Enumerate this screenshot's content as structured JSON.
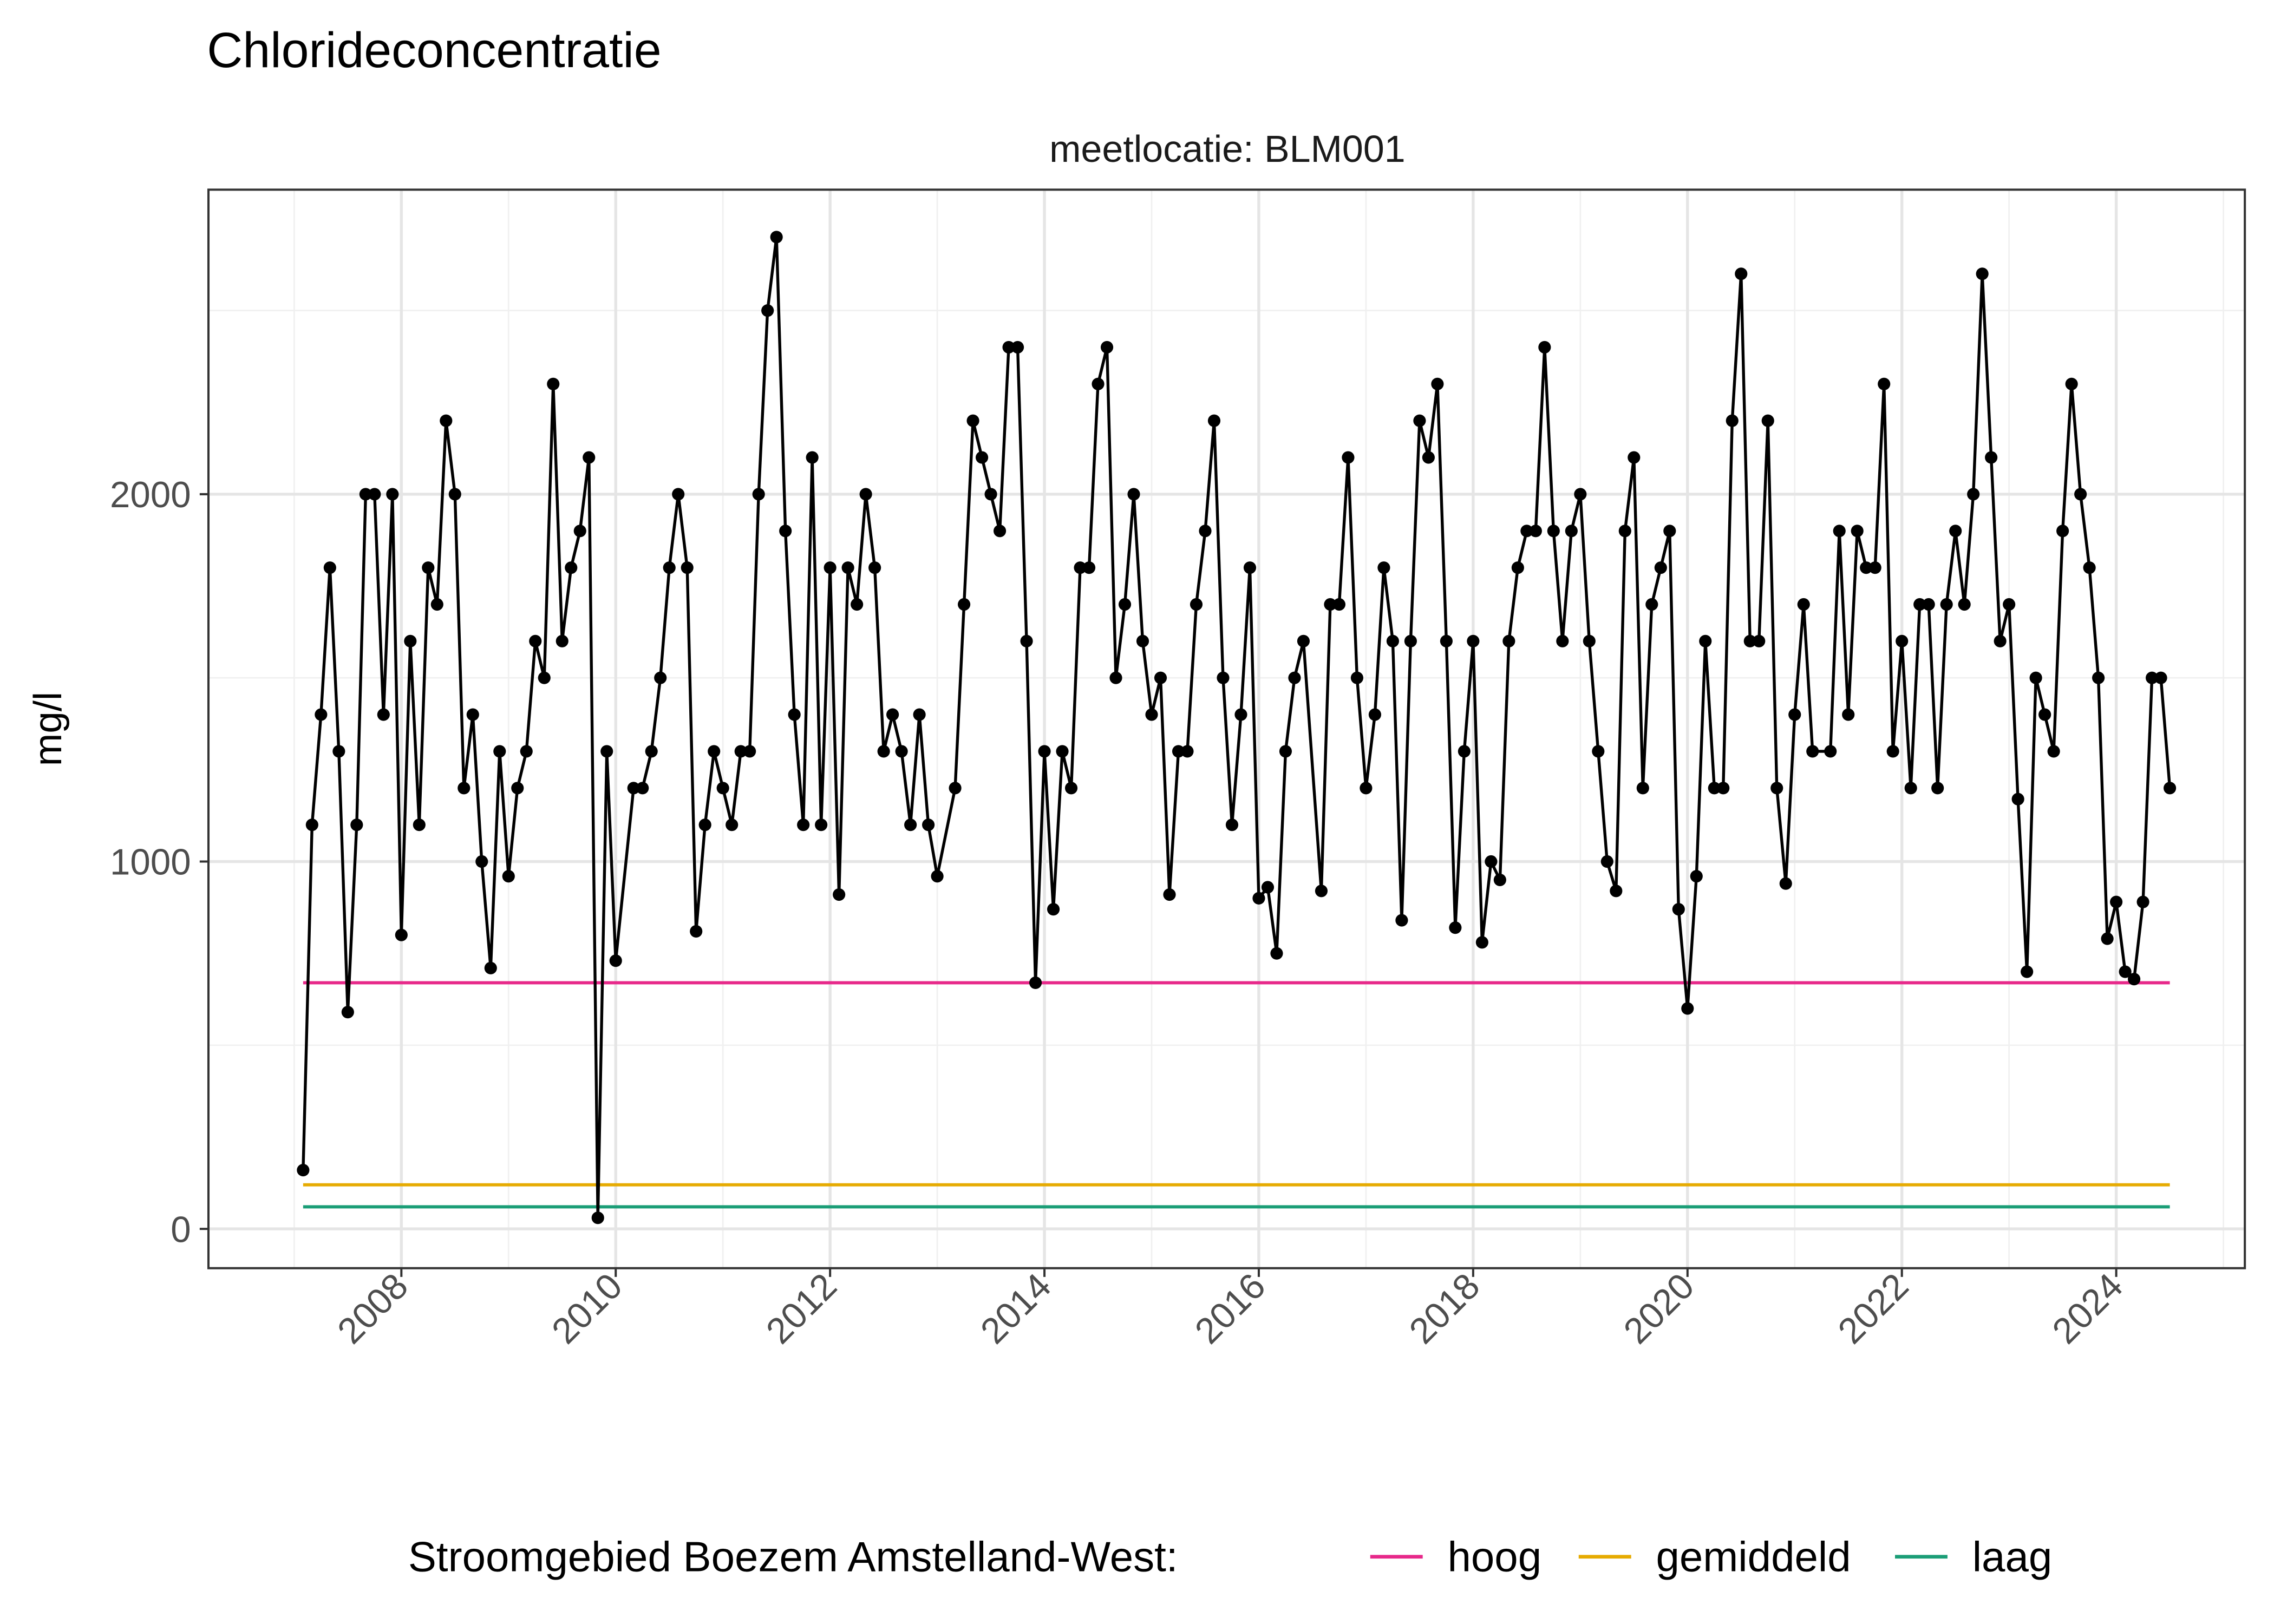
{
  "chart_data": {
    "type": "line",
    "title": "Chlorideconcentratie",
    "facet_label": "meetlocatie: BLM001",
    "xlabel": "",
    "ylabel": "mg/l",
    "xlim": [
      2006.2,
      2025.2
    ],
    "ylim": [
      -107,
      2829
    ],
    "x_ticks": [
      "2008",
      "2010",
      "2012",
      "2014",
      "2016",
      "2018",
      "2020",
      "2022",
      "2024"
    ],
    "y_ticks": [
      "0",
      "1000",
      "2000"
    ],
    "grid": true,
    "legend": {
      "position": "bottom",
      "title": "Stroomgebied Boezem Amstelland-West:",
      "entries": [
        {
          "label": "hoog",
          "color": "#E7298A"
        },
        {
          "label": "gemiddeld",
          "color": "#E6AB02"
        },
        {
          "label": "laag",
          "color": "#1B9E77"
        }
      ]
    },
    "reference_lines": [
      {
        "name": "hoog",
        "value": 670,
        "color": "#E7298A",
        "from": "2007-02",
        "to": "2024-07"
      },
      {
        "name": "gemiddeld",
        "value": 120,
        "color": "#E6AB02",
        "from": "2007-02",
        "to": "2024-07"
      },
      {
        "name": "laag",
        "value": 60,
        "color": "#1B9E77",
        "from": "2007-02",
        "to": "2024-07"
      }
    ],
    "series_color": "#000000",
    "points": [
      [
        "2007-02",
        160
      ],
      [
        "2007-03",
        1100
      ],
      [
        "2007-04",
        1400
      ],
      [
        "2007-05",
        1800
      ],
      [
        "2007-06",
        1300
      ],
      [
        "2007-07",
        590
      ],
      [
        "2007-08",
        1100
      ],
      [
        "2007-09",
        2000
      ],
      [
        "2007-10",
        2000
      ],
      [
        "2007-11",
        1400
      ],
      [
        "2007-12",
        2000
      ],
      [
        "2008-01",
        800
      ],
      [
        "2008-02",
        1600
      ],
      [
        "2008-03",
        1100
      ],
      [
        "2008-04",
        1800
      ],
      [
        "2008-05",
        1700
      ],
      [
        "2008-06",
        2200
      ],
      [
        "2008-07",
        2000
      ],
      [
        "2008-08",
        1200
      ],
      [
        "2008-09",
        1400
      ],
      [
        "2008-10",
        1000
      ],
      [
        "2008-11",
        710
      ],
      [
        "2008-12",
        1300
      ],
      [
        "2009-01",
        960
      ],
      [
        "2009-02",
        1200
      ],
      [
        "2009-03",
        1300
      ],
      [
        "2009-04",
        1600
      ],
      [
        "2009-05",
        1500
      ],
      [
        "2009-06",
        2300
      ],
      [
        "2009-07",
        1600
      ],
      [
        "2009-08",
        1800
      ],
      [
        "2009-09",
        1900
      ],
      [
        "2009-10",
        2100
      ],
      [
        "2009-11",
        30
      ],
      [
        "2009-12",
        1300
      ],
      [
        "2010-01",
        730
      ],
      [
        "2010-03",
        1200
      ],
      [
        "2010-04",
        1200
      ],
      [
        "2010-05",
        1300
      ],
      [
        "2010-06",
        1500
      ],
      [
        "2010-07",
        1800
      ],
      [
        "2010-08",
        2000
      ],
      [
        "2010-09",
        1800
      ],
      [
        "2010-10",
        810
      ],
      [
        "2010-11",
        1100
      ],
      [
        "2010-12",
        1300
      ],
      [
        "2011-01",
        1200
      ],
      [
        "2011-02",
        1100
      ],
      [
        "2011-03",
        1300
      ],
      [
        "2011-04",
        1300
      ],
      [
        "2011-05",
        2000
      ],
      [
        "2011-06",
        2500
      ],
      [
        "2011-07",
        2700
      ],
      [
        "2011-08",
        1900
      ],
      [
        "2011-09",
        1400
      ],
      [
        "2011-10",
        1100
      ],
      [
        "2011-11",
        2100
      ],
      [
        "2011-12",
        1100
      ],
      [
        "2012-01",
        1800
      ],
      [
        "2012-02",
        910
      ],
      [
        "2012-03",
        1800
      ],
      [
        "2012-04",
        1700
      ],
      [
        "2012-05",
        2000
      ],
      [
        "2012-06",
        1800
      ],
      [
        "2012-07",
        1300
      ],
      [
        "2012-08",
        1400
      ],
      [
        "2012-09",
        1300
      ],
      [
        "2012-10",
        1100
      ],
      [
        "2012-11",
        1400
      ],
      [
        "2012-12",
        1100
      ],
      [
        "2013-01",
        960
      ],
      [
        "2013-03",
        1200
      ],
      [
        "2013-04",
        1700
      ],
      [
        "2013-05",
        2200
      ],
      [
        "2013-06",
        2100
      ],
      [
        "2013-07",
        2000
      ],
      [
        "2013-08",
        1900
      ],
      [
        "2013-09",
        2400
      ],
      [
        "2013-10",
        2400
      ],
      [
        "2013-11",
        1600
      ],
      [
        "2013-12",
        670
      ],
      [
        "2014-01",
        1300
      ],
      [
        "2014-02",
        870
      ],
      [
        "2014-03",
        1300
      ],
      [
        "2014-04",
        1200
      ],
      [
        "2014-05",
        1800
      ],
      [
        "2014-06",
        1800
      ],
      [
        "2014-07",
        2300
      ],
      [
        "2014-08",
        2400
      ],
      [
        "2014-09",
        1500
      ],
      [
        "2014-10",
        1700
      ],
      [
        "2014-11",
        2000
      ],
      [
        "2014-12",
        1600
      ],
      [
        "2015-01",
        1400
      ],
      [
        "2015-02",
        1500
      ],
      [
        "2015-03",
        910
      ],
      [
        "2015-04",
        1300
      ],
      [
        "2015-05",
        1300
      ],
      [
        "2015-06",
        1700
      ],
      [
        "2015-07",
        1900
      ],
      [
        "2015-08",
        2200
      ],
      [
        "2015-09",
        1500
      ],
      [
        "2015-10",
        1100
      ],
      [
        "2015-11",
        1400
      ],
      [
        "2015-12",
        1800
      ],
      [
        "2016-01",
        900
      ],
      [
        "2016-02",
        930
      ],
      [
        "2016-03",
        750
      ],
      [
        "2016-04",
        1300
      ],
      [
        "2016-05",
        1500
      ],
      [
        "2016-06",
        1600
      ],
      [
        "2016-08",
        920
      ],
      [
        "2016-09",
        1700
      ],
      [
        "2016-10",
        1700
      ],
      [
        "2016-11",
        2100
      ],
      [
        "2016-12",
        1500
      ],
      [
        "2017-01",
        1200
      ],
      [
        "2017-02",
        1400
      ],
      [
        "2017-03",
        1800
      ],
      [
        "2017-04",
        1600
      ],
      [
        "2017-05",
        840
      ],
      [
        "2017-06",
        1600
      ],
      [
        "2017-07",
        2200
      ],
      [
        "2017-08",
        2100
      ],
      [
        "2017-09",
        2300
      ],
      [
        "2017-10",
        1600
      ],
      [
        "2017-11",
        820
      ],
      [
        "2017-12",
        1300
      ],
      [
        "2018-01",
        1600
      ],
      [
        "2018-02",
        780
      ],
      [
        "2018-03",
        1000
      ],
      [
        "2018-04",
        950
      ],
      [
        "2018-05",
        1600
      ],
      [
        "2018-06",
        1800
      ],
      [
        "2018-07",
        1900
      ],
      [
        "2018-08",
        1900
      ],
      [
        "2018-09",
        2400
      ],
      [
        "2018-10",
        1900
      ],
      [
        "2018-11",
        1600
      ],
      [
        "2018-12",
        1900
      ],
      [
        "2019-01",
        2000
      ],
      [
        "2019-02",
        1600
      ],
      [
        "2019-03",
        1300
      ],
      [
        "2019-04",
        1000
      ],
      [
        "2019-05",
        920
      ],
      [
        "2019-06",
        1900
      ],
      [
        "2019-07",
        2100
      ],
      [
        "2019-08",
        1200
      ],
      [
        "2019-09",
        1700
      ],
      [
        "2019-10",
        1800
      ],
      [
        "2019-11",
        1900
      ],
      [
        "2019-12",
        870
      ],
      [
        "2020-01",
        600
      ],
      [
        "2020-02",
        960
      ],
      [
        "2020-03",
        1600
      ],
      [
        "2020-04",
        1200
      ],
      [
        "2020-05",
        1200
      ],
      [
        "2020-06",
        2200
      ],
      [
        "2020-07",
        2600
      ],
      [
        "2020-08",
        1600
      ],
      [
        "2020-09",
        1600
      ],
      [
        "2020-10",
        2200
      ],
      [
        "2020-11",
        1200
      ],
      [
        "2020-12",
        940
      ],
      [
        "2021-01",
        1400
      ],
      [
        "2021-02",
        1700
      ],
      [
        "2021-03",
        1300
      ],
      [
        "2021-05",
        1300
      ],
      [
        "2021-06",
        1900
      ],
      [
        "2021-07",
        1400
      ],
      [
        "2021-08",
        1900
      ],
      [
        "2021-09",
        1800
      ],
      [
        "2021-10",
        1800
      ],
      [
        "2021-11",
        2300
      ],
      [
        "2021-12",
        1300
      ],
      [
        "2022-01",
        1600
      ],
      [
        "2022-02",
        1200
      ],
      [
        "2022-03",
        1700
      ],
      [
        "2022-04",
        1700
      ],
      [
        "2022-05",
        1200
      ],
      [
        "2022-06",
        1700
      ],
      [
        "2022-07",
        1900
      ],
      [
        "2022-08",
        1700
      ],
      [
        "2022-09",
        2000
      ],
      [
        "2022-10",
        2600
      ],
      [
        "2022-11",
        2100
      ],
      [
        "2022-12",
        1600
      ],
      [
        "2023-01",
        1700
      ],
      [
        "2023-02",
        1170
      ],
      [
        "2023-03",
        700
      ],
      [
        "2023-04",
        1500
      ],
      [
        "2023-05",
        1400
      ],
      [
        "2023-06",
        1300
      ],
      [
        "2023-07",
        1900
      ],
      [
        "2023-08",
        2300
      ],
      [
        "2023-09",
        2000
      ],
      [
        "2023-10",
        1800
      ],
      [
        "2023-11",
        1500
      ],
      [
        "2023-12",
        790
      ],
      [
        "2024-01",
        890
      ],
      [
        "2024-02",
        700
      ],
      [
        "2024-03",
        680
      ],
      [
        "2024-04",
        890
      ],
      [
        "2024-05",
        1500
      ],
      [
        "2024-06",
        1500
      ],
      [
        "2024-07",
        1200
      ]
    ]
  }
}
